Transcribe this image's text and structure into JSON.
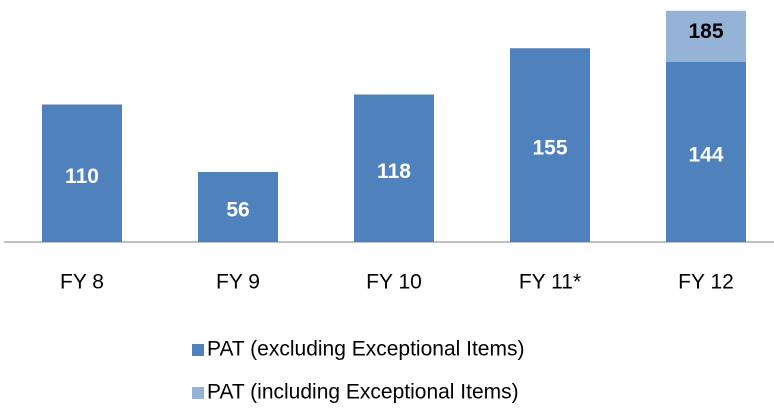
{
  "chart_data": {
    "type": "bar",
    "categories": [
      "FY 8",
      "FY 9",
      "FY 10",
      "FY 11*",
      "FY 12"
    ],
    "series": [
      {
        "name": "PAT (excluding Exceptional Items)",
        "color": "#4f81bd",
        "values": [
          110,
          56,
          118,
          155,
          144
        ]
      },
      {
        "name": "PAT (including Exceptional Items)",
        "color": "#95b3d7",
        "values": [
          null,
          null,
          null,
          null,
          185
        ]
      }
    ],
    "ylim": [
      0,
      190
    ]
  }
}
